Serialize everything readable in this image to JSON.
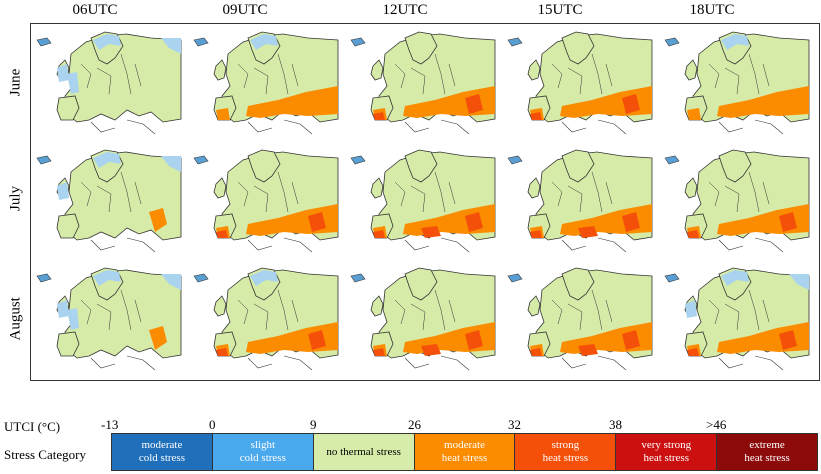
{
  "columns": [
    "06UTC",
    "09UTC",
    "12UTC",
    "15UTC",
    "18UTC"
  ],
  "rows": [
    "June",
    "July",
    "August"
  ],
  "legend": {
    "utci_label": "UTCI  (°C)",
    "category_label": "Stress Category",
    "ticks": [
      "-13",
      "0",
      "9",
      "26",
      "32",
      "38",
      ">46"
    ],
    "categories": [
      {
        "label_line1": "moderate",
        "label_line2": "cold stress",
        "color": "#1f6fba",
        "text_color": "#ffffff"
      },
      {
        "label_line1": "slight",
        "label_line2": "cold stress",
        "color": "#4aa8ec",
        "text_color": "#ffffff"
      },
      {
        "label_line1": "no thermal stress",
        "label_line2": "",
        "color": "#d8ecaa",
        "text_color": "#000000"
      },
      {
        "label_line1": "moderate",
        "label_line2": "heat stress",
        "color": "#fb8c00",
        "text_color": "#ffffff"
      },
      {
        "label_line1": "strong",
        "label_line2": "heat stress",
        "color": "#f5500a",
        "text_color": "#ffffff"
      },
      {
        "label_line1": "very strong",
        "label_line2": "heat stress",
        "color": "#cc1010",
        "text_color": "#ffffff"
      },
      {
        "label_line1": "extreme",
        "label_line2": "heat stress",
        "color": "#8c0a0a",
        "text_color": "#ffffff"
      }
    ]
  },
  "colors": {
    "land_neutral": "#d6eba7",
    "cold_slight": "#a9d3ee",
    "cold_moderate": "#5a9fd4",
    "heat_moderate": "#fb8c00",
    "heat_strong": "#f5500a",
    "border": "#333333"
  },
  "map_heat_levels": [
    [
      0,
      2,
      3,
      3,
      2
    ],
    [
      1,
      3,
      4,
      4,
      3
    ],
    [
      1,
      3,
      4,
      4,
      3
    ]
  ],
  "map_cold_levels": [
    [
      3,
      1,
      0,
      0,
      1
    ],
    [
      2,
      0,
      0,
      0,
      0
    ],
    [
      3,
      1,
      0,
      0,
      2
    ]
  ]
}
